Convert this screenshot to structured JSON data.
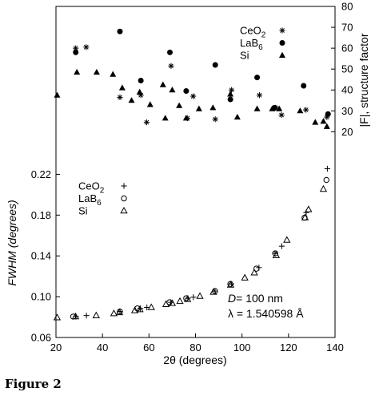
{
  "caption": "Figure 2",
  "chart_data": {
    "type": "scatter",
    "xlabel": "2θ (degrees)",
    "xlim": [
      20,
      140
    ],
    "xticks": [
      "20",
      "40",
      "60",
      "80",
      "100",
      "120",
      "140"
    ],
    "annotation": {
      "d_symbol": "D",
      "d_value": "= 100 nm",
      "lambda": "λ = 1.540598 Å"
    },
    "panels": [
      {
        "id": "structure_factor",
        "ylabel": "|F|, structure factor",
        "ylim": [
          14,
          80
        ],
        "yticks": [
          "20",
          "30",
          "40",
          "50",
          "60",
          "70",
          "80"
        ],
        "legend": [
          {
            "base": "CeO",
            "sub": "2",
            "marker": "asterisk"
          },
          {
            "base": "LaB",
            "sub": "6",
            "marker": "filled-circle"
          },
          {
            "base": "Si",
            "sub": "",
            "marker": "filled-triangle"
          }
        ],
        "series": [
          {
            "name": "CeO2",
            "marker": "asterisk",
            "points": [
              [
                28.5,
                60
              ],
              [
                33,
                60.5
              ],
              [
                47.5,
                36.5
              ],
              [
                56.5,
                37.5
              ],
              [
                59,
                24.5
              ],
              [
                69.5,
                51.5
              ],
              [
                76.5,
                26.5
              ],
              [
                79,
                37
              ],
              [
                88.5,
                26
              ],
              [
                95.5,
                40
              ],
              [
                107.5,
                37.5
              ],
              [
                114.5,
                31.5
              ],
              [
                117,
                28
              ],
              [
                127.5,
                30.5
              ],
              [
                136.5,
                27
              ]
            ]
          },
          {
            "name": "LaB6",
            "marker": "filled-circle",
            "points": [
              [
                28.5,
                58
              ],
              [
                47.5,
                68
              ],
              [
                56.5,
                44.5
              ],
              [
                69,
                58
              ],
              [
                76,
                39.5
              ],
              [
                88.5,
                52
              ],
              [
                95,
                35.5
              ],
              [
                106.5,
                46
              ],
              [
                114,
                31.5
              ],
              [
                126.5,
                42
              ],
              [
                137,
                28.5
              ]
            ]
          },
          {
            "name": "Si",
            "marker": "filled-triangle",
            "points": [
              [
                20.5,
                37.5
              ],
              [
                29,
                48.5
              ],
              [
                37.5,
                48.5
              ],
              [
                44.5,
                47.5
              ],
              [
                48.5,
                41
              ],
              [
                52.5,
                35
              ],
              [
                56,
                39
              ],
              [
                60.5,
                33
              ],
              [
                66,
                42.5
              ],
              [
                67,
                26.5
              ],
              [
                70,
                40
              ],
              [
                73,
                32.5
              ],
              [
                76,
                26.5
              ],
              [
                81.5,
                31
              ],
              [
                87.5,
                31.5
              ],
              [
                95,
                38
              ],
              [
                98,
                27
              ],
              [
                106.5,
                31
              ],
              [
                113,
                31
              ],
              [
                116,
                31
              ],
              [
                125,
                30
              ],
              [
                131.5,
                24.5
              ],
              [
                135,
                25
              ],
              [
                136.5,
                22.5
              ]
            ]
          }
        ]
      },
      {
        "id": "fwhm",
        "ylabel": "FWHM (degrees)",
        "ylim": [
          0.06,
          0.24
        ],
        "yticks": [
          "0.06",
          "0.10",
          "0.14",
          "0.18",
          "0.22"
        ],
        "legend": [
          {
            "base": "CeO",
            "sub": "2",
            "marker": "plus"
          },
          {
            "base": "LaB",
            "sub": "6",
            "marker": "open-circle"
          },
          {
            "base": "Si",
            "sub": "",
            "marker": "open-triangle"
          }
        ],
        "series": [
          {
            "name": "CeO2",
            "marker": "plus",
            "points": [
              [
                28.6,
                0.0805
              ],
              [
                33.1,
                0.0815
              ],
              [
                47.5,
                0.0855
              ],
              [
                56.3,
                0.0885
              ],
              [
                59.1,
                0.0895
              ],
              [
                69.4,
                0.0945
              ],
              [
                76.7,
                0.0985
              ],
              [
                79.1,
                0.0995
              ],
              [
                88.4,
                0.1055
              ],
              [
                95.4,
                0.1125
              ],
              [
                107.3,
                0.1285
              ],
              [
                114.2,
                0.1425
              ],
              [
                117.1,
                0.1495
              ],
              [
                127.6,
                0.1825
              ],
              [
                136.7,
                0.2255
              ]
            ]
          },
          {
            "name": "LaB6",
            "marker": "open-circle",
            "points": [
              [
                27.4,
                0.0805
              ],
              [
                47.5,
                0.0855
              ],
              [
                55.0,
                0.0885
              ],
              [
                68.8,
                0.0945
              ],
              [
                76.0,
                0.0985
              ],
              [
                88.4,
                0.1055
              ],
              [
                95.0,
                0.1125
              ],
              [
                106.2,
                0.1275
              ],
              [
                114.3,
                0.1425
              ],
              [
                126.9,
                0.1775
              ],
              [
                136.3,
                0.2145
              ]
            ]
          },
          {
            "name": "Si",
            "marker": "open-triangle",
            "points": [
              [
                20.5,
                0.0795
              ],
              [
                28.4,
                0.0805
              ],
              [
                37.3,
                0.0815
              ],
              [
                44.9,
                0.0835
              ],
              [
                47.3,
                0.0845
              ],
              [
                53.9,
                0.0865
              ],
              [
                56.1,
                0.0875
              ],
              [
                61.0,
                0.0895
              ],
              [
                67.3,
                0.0925
              ],
              [
                70.0,
                0.0935
              ],
              [
                73.3,
                0.0955
              ],
              [
                76.6,
                0.0975
              ],
              [
                81.9,
                0.1005
              ],
              [
                87.7,
                0.1045
              ],
              [
                95.1,
                0.1115
              ],
              [
                101.2,
                0.1185
              ],
              [
                105.3,
                0.1235
              ],
              [
                114.7,
                0.1405
              ],
              [
                119.3,
                0.1555
              ],
              [
                127.1,
                0.1775
              ],
              [
                128.6,
                0.1855
              ],
              [
                135.0,
                0.2055
              ]
            ]
          }
        ]
      }
    ]
  }
}
